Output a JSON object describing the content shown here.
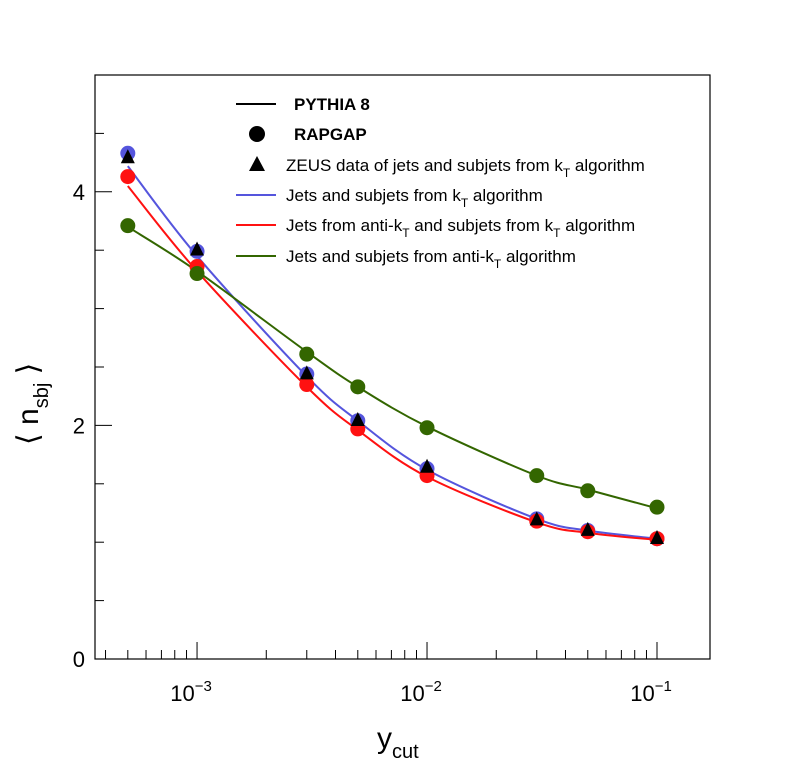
{
  "chart_data": {
    "type": "line",
    "xscale": "log",
    "xlim": [
      0.00036,
      0.17
    ],
    "ylim": [
      0,
      5
    ],
    "y_ticks": [
      "0",
      "2",
      "4"
    ],
    "x_ticks": [
      {
        "base": "10",
        "exp": "−3"
      },
      {
        "base": "10",
        "exp": "−2"
      },
      {
        "base": "10",
        "exp": "−1"
      }
    ],
    "xlabel": {
      "main": "y",
      "sub": "cut"
    },
    "ylabel": {
      "open": "⟨",
      "main": "n",
      "sub": "sbj",
      "close": "⟩"
    },
    "x": [
      0.0005,
      0.001,
      0.003,
      0.005,
      0.01,
      0.03,
      0.05,
      0.1
    ],
    "series": [
      {
        "name": "Jets and subjets from kT algorithm",
        "color": "#5555dd",
        "kind": "rapgap",
        "values": [
          4.33,
          3.49,
          2.44,
          2.04,
          1.63,
          1.2,
          1.1,
          1.03
        ]
      },
      {
        "name": "Jets from anti-kT and subjets from kT algorithm",
        "color": "#ff1111",
        "kind": "rapgap",
        "values": [
          4.13,
          3.36,
          2.35,
          1.97,
          1.57,
          1.18,
          1.09,
          1.03
        ]
      },
      {
        "name": "Jets and subjets from anti-kT algorithm",
        "color": "#336600",
        "kind": "rapgap",
        "values": [
          3.71,
          3.3,
          2.61,
          2.33,
          1.98,
          1.57,
          1.44,
          1.3
        ]
      },
      {
        "name": "ZEUS data of jets and subjets from kT algorithm",
        "color": "#000000",
        "kind": "zeus",
        "values": [
          4.29,
          3.5,
          2.44,
          2.04,
          1.64,
          1.19,
          1.1,
          1.03
        ]
      }
    ],
    "pythia_curves": [
      {
        "color": "#5555dd",
        "points": [
          [
            0.0005,
            4.22
          ],
          [
            0.001,
            3.45
          ],
          [
            0.003,
            2.42
          ],
          [
            0.005,
            2.04
          ],
          [
            0.01,
            1.62
          ],
          [
            0.03,
            1.2
          ],
          [
            0.05,
            1.1
          ],
          [
            0.1,
            1.03
          ]
        ]
      },
      {
        "color": "#ff1111",
        "points": [
          [
            0.0005,
            4.05
          ],
          [
            0.001,
            3.32
          ],
          [
            0.003,
            2.33
          ],
          [
            0.005,
            1.96
          ],
          [
            0.01,
            1.56
          ],
          [
            0.03,
            1.17
          ],
          [
            0.05,
            1.08
          ],
          [
            0.1,
            1.02
          ]
        ]
      },
      {
        "color": "#336600",
        "points": [
          [
            0.0005,
            3.7
          ],
          [
            0.001,
            3.32
          ],
          [
            0.003,
            2.63
          ],
          [
            0.005,
            2.33
          ],
          [
            0.01,
            1.99
          ],
          [
            0.03,
            1.57
          ],
          [
            0.05,
            1.45
          ],
          [
            0.1,
            1.29
          ]
        ]
      }
    ],
    "legend": [
      {
        "symbol": "line",
        "color": "#000000",
        "bold": true,
        "text": "PYTHIA 8"
      },
      {
        "symbol": "circle",
        "color": "#000000",
        "bold": true,
        "text": "RAPGAP"
      },
      {
        "symbol": "triangle",
        "color": "#000000",
        "bold": false,
        "text": "ZEUS data of jets and subjets from ",
        "k": "k",
        "ksub": "T",
        "tail": " algorithm"
      },
      {
        "symbol": "line",
        "color": "#5555dd",
        "bold": false,
        "text": "Jets and subjets from ",
        "k": "k",
        "ksub": "T",
        "tail": " algorithm"
      },
      {
        "symbol": "line",
        "color": "#ff1111",
        "bold": false,
        "text": "Jets from anti-",
        "k": "k",
        "ksub": "T",
        "tail": " and subjets from ",
        "k2": "k",
        "ksub2": "T",
        "tail2": " algorithm"
      },
      {
        "symbol": "line",
        "color": "#336600",
        "bold": false,
        "text": "Jets and subjets from anti-",
        "k": "k",
        "ksub": "T",
        "tail": " algorithm"
      }
    ],
    "legend_position": "top-right"
  }
}
